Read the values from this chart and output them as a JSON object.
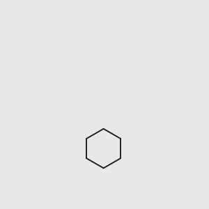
{
  "bg_color": "#e8e8e8",
  "bond_color": "#1a1a1a",
  "N_color": "#0000ee",
  "O_color": "#ff0000",
  "S_color": "#bbbb00",
  "H_color": "#4a9090",
  "figsize": [
    3.0,
    3.0
  ],
  "dpi": 100,
  "lw": 1.35,
  "fs": 8.0
}
